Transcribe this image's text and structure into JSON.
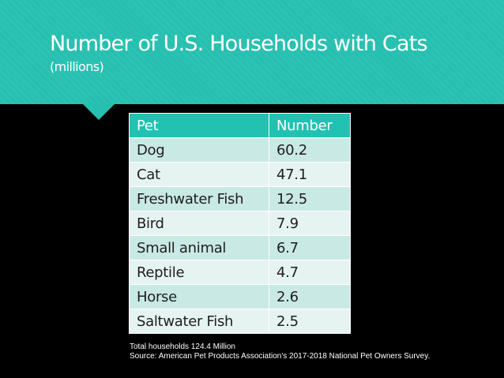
{
  "header": {
    "title": "Number of U.S. Households with Cats",
    "subtitle": "(millions)",
    "accent_color": "#27c0b0"
  },
  "table": {
    "columns": [
      "Pet",
      "Number"
    ],
    "rows": [
      {
        "pet": "Dog",
        "number": "60.2"
      },
      {
        "pet": "Cat",
        "number": "47.1"
      },
      {
        "pet": "Freshwater Fish",
        "number": "12.5"
      },
      {
        "pet": "Bird",
        "number": "7.9"
      },
      {
        "pet": "Small animal",
        "number": "6.7"
      },
      {
        "pet": "Reptile",
        "number": "4.7"
      },
      {
        "pet": "Horse",
        "number": "2.6"
      },
      {
        "pet": "Saltwater Fish",
        "number": "2.5"
      }
    ],
    "header_color": "#21c2b2",
    "row_colors": [
      "#c9e9e4",
      "#e6f4f1"
    ]
  },
  "footnote": {
    "total": "Total households 124.4 Million",
    "source": "Source: American Pet Products Association's 2017-2018 National Pet Owners Survey."
  }
}
